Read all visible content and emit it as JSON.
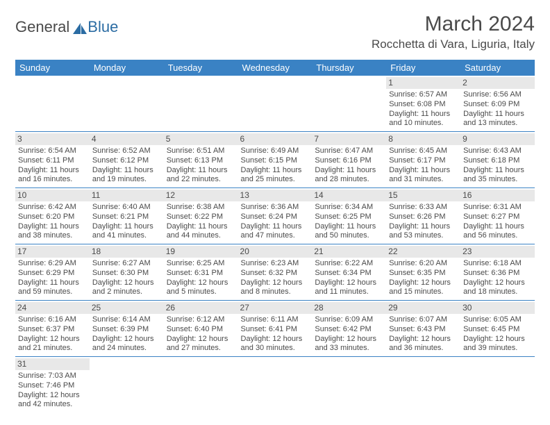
{
  "brand": {
    "part1": "General",
    "part2": "Blue"
  },
  "title": "March 2024",
  "location": "Rocchetta di Vara, Liguria, Italy",
  "colors": {
    "header_bg": "#3a82c4",
    "header_text": "#ffffff",
    "border": "#3a82c4",
    "daynum_bg": "#e8e8e8",
    "text": "#4a4a4a",
    "brand_blue": "#2b6ca3"
  },
  "day_headers": [
    "Sunday",
    "Monday",
    "Tuesday",
    "Wednesday",
    "Thursday",
    "Friday",
    "Saturday"
  ],
  "weeks": [
    [
      null,
      null,
      null,
      null,
      null,
      {
        "n": "1",
        "sr": "6:57 AM",
        "ss": "6:08 PM",
        "dl": "11 hours and 10 minutes."
      },
      {
        "n": "2",
        "sr": "6:56 AM",
        "ss": "6:09 PM",
        "dl": "11 hours and 13 minutes."
      }
    ],
    [
      {
        "n": "3",
        "sr": "6:54 AM",
        "ss": "6:11 PM",
        "dl": "11 hours and 16 minutes."
      },
      {
        "n": "4",
        "sr": "6:52 AM",
        "ss": "6:12 PM",
        "dl": "11 hours and 19 minutes."
      },
      {
        "n": "5",
        "sr": "6:51 AM",
        "ss": "6:13 PM",
        "dl": "11 hours and 22 minutes."
      },
      {
        "n": "6",
        "sr": "6:49 AM",
        "ss": "6:15 PM",
        "dl": "11 hours and 25 minutes."
      },
      {
        "n": "7",
        "sr": "6:47 AM",
        "ss": "6:16 PM",
        "dl": "11 hours and 28 minutes."
      },
      {
        "n": "8",
        "sr": "6:45 AM",
        "ss": "6:17 PM",
        "dl": "11 hours and 31 minutes."
      },
      {
        "n": "9",
        "sr": "6:43 AM",
        "ss": "6:18 PM",
        "dl": "11 hours and 35 minutes."
      }
    ],
    [
      {
        "n": "10",
        "sr": "6:42 AM",
        "ss": "6:20 PM",
        "dl": "11 hours and 38 minutes."
      },
      {
        "n": "11",
        "sr": "6:40 AM",
        "ss": "6:21 PM",
        "dl": "11 hours and 41 minutes."
      },
      {
        "n": "12",
        "sr": "6:38 AM",
        "ss": "6:22 PM",
        "dl": "11 hours and 44 minutes."
      },
      {
        "n": "13",
        "sr": "6:36 AM",
        "ss": "6:24 PM",
        "dl": "11 hours and 47 minutes."
      },
      {
        "n": "14",
        "sr": "6:34 AM",
        "ss": "6:25 PM",
        "dl": "11 hours and 50 minutes."
      },
      {
        "n": "15",
        "sr": "6:33 AM",
        "ss": "6:26 PM",
        "dl": "11 hours and 53 minutes."
      },
      {
        "n": "16",
        "sr": "6:31 AM",
        "ss": "6:27 PM",
        "dl": "11 hours and 56 minutes."
      }
    ],
    [
      {
        "n": "17",
        "sr": "6:29 AM",
        "ss": "6:29 PM",
        "dl": "11 hours and 59 minutes."
      },
      {
        "n": "18",
        "sr": "6:27 AM",
        "ss": "6:30 PM",
        "dl": "12 hours and 2 minutes."
      },
      {
        "n": "19",
        "sr": "6:25 AM",
        "ss": "6:31 PM",
        "dl": "12 hours and 5 minutes."
      },
      {
        "n": "20",
        "sr": "6:23 AM",
        "ss": "6:32 PM",
        "dl": "12 hours and 8 minutes."
      },
      {
        "n": "21",
        "sr": "6:22 AM",
        "ss": "6:34 PM",
        "dl": "12 hours and 11 minutes."
      },
      {
        "n": "22",
        "sr": "6:20 AM",
        "ss": "6:35 PM",
        "dl": "12 hours and 15 minutes."
      },
      {
        "n": "23",
        "sr": "6:18 AM",
        "ss": "6:36 PM",
        "dl": "12 hours and 18 minutes."
      }
    ],
    [
      {
        "n": "24",
        "sr": "6:16 AM",
        "ss": "6:37 PM",
        "dl": "12 hours and 21 minutes."
      },
      {
        "n": "25",
        "sr": "6:14 AM",
        "ss": "6:39 PM",
        "dl": "12 hours and 24 minutes."
      },
      {
        "n": "26",
        "sr": "6:12 AM",
        "ss": "6:40 PM",
        "dl": "12 hours and 27 minutes."
      },
      {
        "n": "27",
        "sr": "6:11 AM",
        "ss": "6:41 PM",
        "dl": "12 hours and 30 minutes."
      },
      {
        "n": "28",
        "sr": "6:09 AM",
        "ss": "6:42 PM",
        "dl": "12 hours and 33 minutes."
      },
      {
        "n": "29",
        "sr": "6:07 AM",
        "ss": "6:43 PM",
        "dl": "12 hours and 36 minutes."
      },
      {
        "n": "30",
        "sr": "6:05 AM",
        "ss": "6:45 PM",
        "dl": "12 hours and 39 minutes."
      }
    ],
    [
      {
        "n": "31",
        "sr": "7:03 AM",
        "ss": "7:46 PM",
        "dl": "12 hours and 42 minutes."
      },
      null,
      null,
      null,
      null,
      null,
      null
    ]
  ],
  "labels": {
    "sunrise": "Sunrise:",
    "sunset": "Sunset:",
    "daylight": "Daylight:"
  }
}
